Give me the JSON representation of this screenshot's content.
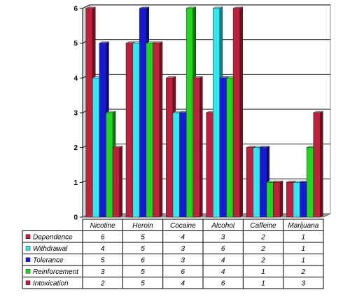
{
  "chart_data": {
    "type": "bar",
    "categories": [
      "Nicotine",
      "Heroin",
      "Cocaine",
      "Alcohol",
      "Caffeine",
      "Marijuana"
    ],
    "series": [
      {
        "name": "Dependence",
        "values": [
          6,
          5,
          4,
          3,
          2,
          1
        ],
        "color": "#c0203c"
      },
      {
        "name": "Withdrawal",
        "values": [
          4,
          5,
          3,
          6,
          2,
          1
        ],
        "color": "#30e8f0"
      },
      {
        "name": "Tolerance",
        "values": [
          5,
          6,
          3,
          4,
          2,
          1
        ],
        "color": "#1818d8"
      },
      {
        "name": "Reinforcement",
        "values": [
          3,
          5,
          6,
          4,
          1,
          2
        ],
        "color": "#20d820"
      },
      {
        "name": "Intoxication",
        "values": [
          2,
          5,
          4,
          6,
          1,
          3
        ],
        "color": "#c0203c"
      }
    ],
    "yticks": [
      "0",
      "1",
      "2",
      "3",
      "4",
      "5",
      "6"
    ],
    "ylim": [
      0,
      6
    ],
    "grid": true,
    "legend": "data-table-below",
    "title": "",
    "xlabel": "",
    "ylabel": ""
  }
}
